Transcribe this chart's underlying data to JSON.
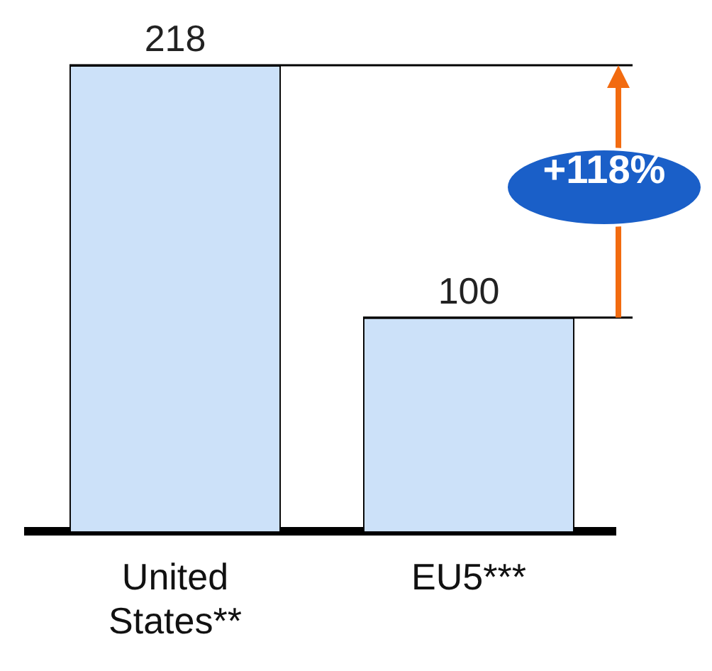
{
  "chart_data": {
    "type": "bar",
    "categories": [
      "United States**",
      "EU5***"
    ],
    "values": [
      218,
      100
    ],
    "color": "#cce1f9",
    "data_labels": true,
    "ref_lines": [
      {
        "axis": "y",
        "value": 218,
        "color": "#000000"
      },
      {
        "axis": "y",
        "value": 100,
        "color": "#000000"
      }
    ],
    "annotations": [
      "+118%"
    ],
    "legend": false,
    "grid": false
  }
}
